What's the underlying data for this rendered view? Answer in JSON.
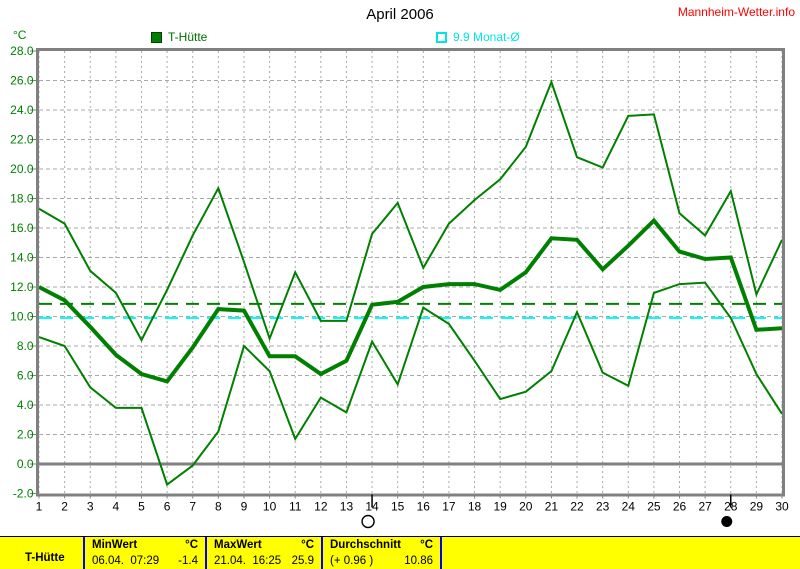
{
  "header": {
    "title": "April 2006",
    "site_link": "Mannheim-Wetter.info"
  },
  "legend": {
    "unit_label": "°C",
    "series1_label": "T-Hütte",
    "series2_label": "9.9 Monat-Ø"
  },
  "colors": {
    "line_green": "#008000",
    "avg_dash_green": "#008000",
    "month_avg_cyan": "#00ffff",
    "grid_gray": "#a8a8a8",
    "border_gray": "#808080",
    "axis_label_green": "#008000",
    "x_label_black": "#000000",
    "link_red": "#ff0000",
    "table_yellow": "#ffff00",
    "table_sep_blue": "#0000ff"
  },
  "chart_data": {
    "type": "line",
    "title": "April 2006",
    "x": [
      1,
      2,
      3,
      4,
      5,
      6,
      7,
      8,
      9,
      10,
      11,
      12,
      13,
      14,
      15,
      16,
      17,
      18,
      19,
      20,
      21,
      22,
      23,
      24,
      25,
      26,
      27,
      28,
      29,
      30
    ],
    "x_tick_labels": [
      "1",
      "2",
      "3",
      "4",
      "5",
      "6",
      "7",
      "8",
      "9",
      "10",
      "11",
      "12",
      "13",
      "14",
      "15",
      "16",
      "17",
      "18",
      "19",
      "20",
      "21",
      "22",
      "23",
      "24",
      "25",
      "26",
      "27",
      "28",
      "29",
      "30"
    ],
    "y_tick_labels": [
      "28.0",
      "26.0",
      "24.0",
      "22.0",
      "20.0",
      "18.0",
      "16.0",
      "14.0",
      "12.0",
      "10.0",
      "8.0",
      "6.0",
      "4.0",
      "2.0",
      "0.0",
      "-2.0"
    ],
    "ylim": [
      -2,
      28
    ],
    "ytick_step": 2,
    "grid": true,
    "series": [
      {
        "name": "max",
        "width": 2,
        "values": [
          17.3,
          16.3,
          13.1,
          11.6,
          8.4,
          11.8,
          15.5,
          18.7,
          13.7,
          8.5,
          13.0,
          9.7,
          9.7,
          15.6,
          17.7,
          13.3,
          16.3,
          17.9,
          19.3,
          21.5,
          25.9,
          20.8,
          20.1,
          23.6,
          23.7,
          17.0,
          15.5,
          18.5,
          11.5,
          15.2
        ]
      },
      {
        "name": "mean",
        "width": 4,
        "values": [
          12.0,
          11.1,
          9.3,
          7.4,
          6.1,
          5.6,
          7.9,
          10.5,
          10.4,
          7.3,
          7.3,
          6.1,
          7.0,
          10.8,
          11.0,
          12.0,
          12.2,
          12.2,
          11.8,
          13.0,
          15.3,
          15.2,
          13.2,
          14.8,
          16.5,
          14.4,
          13.9,
          14.0,
          9.1,
          9.2
        ]
      },
      {
        "name": "min",
        "width": 2,
        "values": [
          8.6,
          8.0,
          5.2,
          3.8,
          3.8,
          -1.4,
          -0.1,
          2.2,
          8.0,
          6.3,
          1.7,
          4.5,
          3.5,
          8.3,
          5.4,
          10.6,
          9.5,
          7.0,
          4.4,
          4.9,
          6.3,
          10.3,
          6.2,
          5.3,
          11.6,
          12.2,
          12.3,
          9.9,
          6.1,
          3.4
        ]
      }
    ],
    "reference_lines": [
      {
        "name": "month-average",
        "value": 9.9,
        "color": "#00ffff",
        "style": "dashed"
      },
      {
        "name": "period-average",
        "value": 10.86,
        "color": "#008000",
        "style": "dashed"
      }
    ],
    "moon_markers": [
      {
        "day": 14,
        "phase": "full"
      },
      {
        "day": 28,
        "phase": "new"
      }
    ],
    "legend_entries": [
      "T-Hütte",
      "9.9 Monat-Ø"
    ]
  },
  "footer_table": {
    "station_label": "T-Hütte",
    "min": {
      "header": "MinWert",
      "unit": "°C",
      "when": "06.04.  07:29",
      "value": "-1.4"
    },
    "max": {
      "header": "MaxWert",
      "unit": "°C",
      "when": "21.04.  16:25",
      "value": "25.9"
    },
    "avg": {
      "header": "Durchschnitt",
      "unit": "°C",
      "when": "(+ 0.96 )",
      "value": "10.86"
    }
  }
}
